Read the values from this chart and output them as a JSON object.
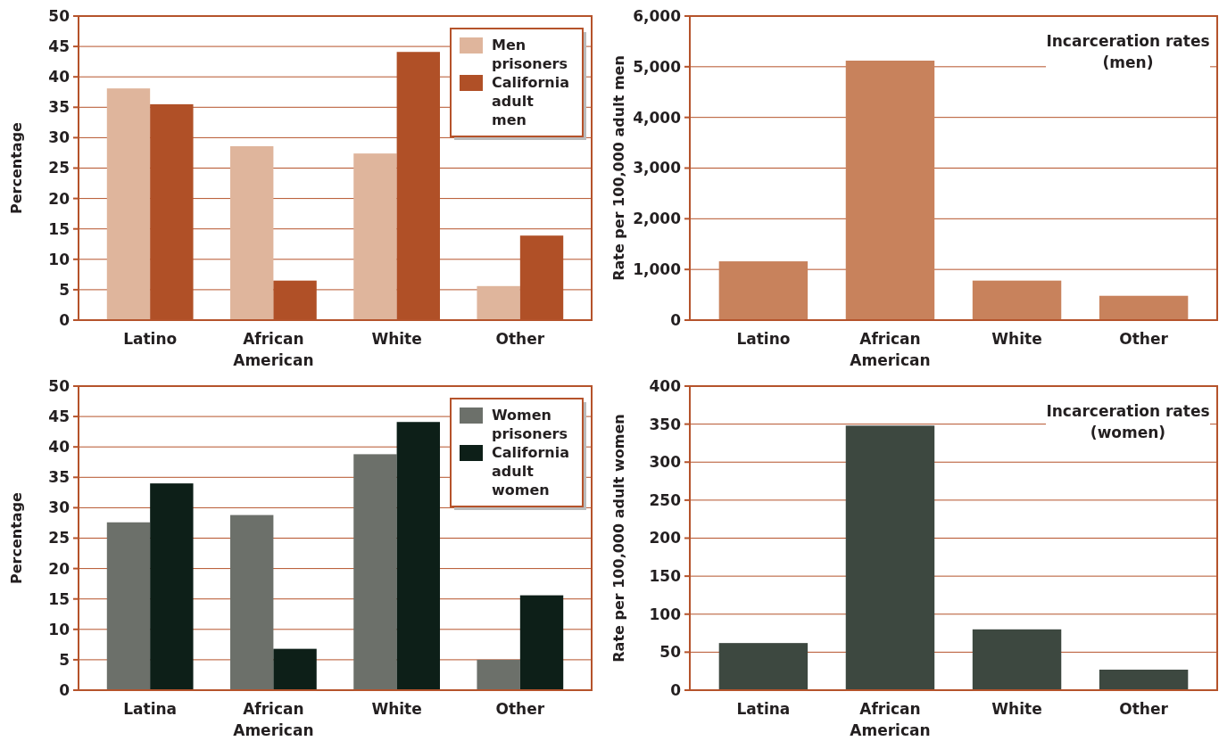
{
  "chart_data": [
    {
      "type": "bar",
      "ylabel": "Percentage",
      "categories": [
        "Latino",
        "African American",
        "White",
        "Other"
      ],
      "series": [
        {
          "name": "Men prisoners",
          "color": "#dfb59c",
          "values": [
            38.1,
            28.6,
            27.4,
            5.6
          ]
        },
        {
          "name": "California adult men",
          "color": "#b05027",
          "values": [
            35.5,
            6.5,
            44.1,
            13.9
          ]
        }
      ],
      "ylim": [
        0,
        50
      ],
      "yticks": [
        0,
        5,
        10,
        15,
        20,
        25,
        30,
        35,
        40,
        45,
        50
      ],
      "grid": "y",
      "legend": "top right"
    },
    {
      "type": "bar",
      "title": "Incarceration rates (men)",
      "ylabel": "Rate per 100,000 adult men",
      "categories": [
        "Latino",
        "African American",
        "White",
        "Other"
      ],
      "series": [
        {
          "color": "#c8825c",
          "values": [
            1160,
            5120,
            780,
            480
          ]
        }
      ],
      "ylim": [
        0,
        6000
      ],
      "yticks": [
        0,
        {
          "value": 1000,
          "label": "1,000"
        },
        {
          "value": 2000,
          "label": "2,000"
        },
        {
          "value": 3000,
          "label": "3,000"
        },
        {
          "value": 4000,
          "label": "4,000"
        },
        {
          "value": 5000,
          "label": "5,000"
        },
        {
          "value": 6000,
          "label": "6,000"
        }
      ],
      "grid": "y"
    },
    {
      "type": "bar",
      "ylabel": "Percentage",
      "categories": [
        "Latina",
        "African American",
        "White",
        "Other"
      ],
      "series": [
        {
          "name": "Women prisoners",
          "color": "#6c706a",
          "values": [
            27.6,
            28.8,
            38.8,
            5
          ]
        },
        {
          "name": "California adult women",
          "color": "#0d1f18",
          "values": [
            34,
            6.8,
            44.1,
            15.6
          ]
        }
      ],
      "ylim": [
        0,
        50
      ],
      "yticks": [
        0,
        5,
        10,
        15,
        20,
        25,
        30,
        35,
        40,
        45,
        50
      ],
      "grid": "y",
      "legend": "top right"
    },
    {
      "type": "bar",
      "title": "Incarceration rates (women)",
      "ylabel": "Rate per 100,000 adult women",
      "categories": [
        "Latina",
        "African American",
        "White",
        "Other"
      ],
      "series": [
        {
          "color": "#3d4840",
          "values": [
            62,
            348,
            80,
            27
          ]
        }
      ],
      "ylim": [
        0,
        400
      ],
      "yticks": [
        0,
        50,
        100,
        150,
        200,
        250,
        300,
        350,
        400
      ],
      "grid": "y"
    }
  ]
}
